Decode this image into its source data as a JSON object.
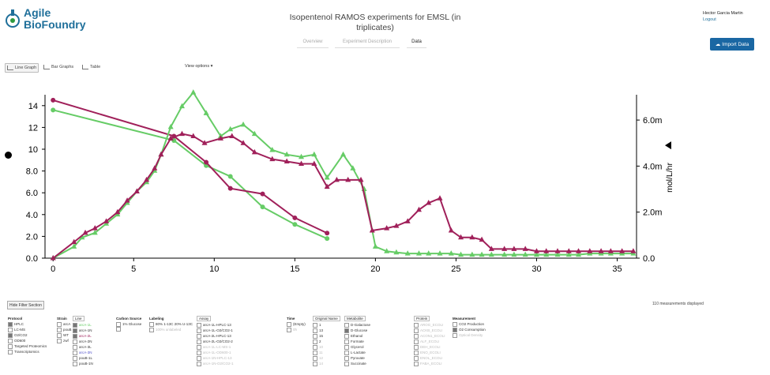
{
  "app": {
    "brand_line1": "Agile",
    "brand_line2": "BioFoundry"
  },
  "header": {
    "title": "Isopentenol RAMOS experiments for EMSL (in triplicates)"
  },
  "user": {
    "name": "Hector Garcia Martin",
    "logout": "Logout"
  },
  "tabs": [
    {
      "label": "Overview",
      "active": false
    },
    {
      "label": "Experiment Description",
      "active": false
    },
    {
      "label": "Data",
      "active": true
    }
  ],
  "import_button": {
    "label": "Import Data"
  },
  "view": {
    "line_graph": "Line Graph",
    "bar_graphs": "Bar Graphs",
    "table": "Table",
    "options": "View options ▾"
  },
  "chart_data": {
    "type": "line",
    "x_ticks": [
      "0",
      "5",
      "10",
      "15",
      "20",
      "25",
      "30",
      "35"
    ],
    "y_left_ticks": [
      "0.0",
      "2.0",
      "4.0",
      "6.0",
      "8.0",
      "10",
      "12",
      "14"
    ],
    "y_right_ticks": [
      "0.0",
      "2.0m",
      "4.0m",
      "6.0m"
    ],
    "y_right_label": "mol/L/hr",
    "xlim": [
      -0.5,
      36.2
    ],
    "ylim_left": [
      0,
      15
    ],
    "ylim_right": [
      0,
      0.0071
    ],
    "series": [
      {
        "color": "#66cc66",
        "axis": "left",
        "marker": "circle",
        "x": [
          0,
          7.5,
          9.5,
          11,
          13,
          15,
          17
        ],
        "y": [
          13.6,
          10.8,
          8.5,
          7.5,
          4.7,
          3.1,
          1.8
        ]
      },
      {
        "color": "#a0205a",
        "axis": "left",
        "marker": "circle",
        "x": [
          0,
          7.5,
          9.5,
          11,
          13,
          15,
          17
        ],
        "y": [
          14.5,
          11.2,
          8.8,
          6.4,
          5.9,
          3.7,
          2.3
        ]
      },
      {
        "color": "#66cc66",
        "axis": "right",
        "marker": "triangle",
        "x": [
          0,
          1.3,
          1.8,
          2.6,
          3.3,
          4,
          4.6,
          5.2,
          5.8,
          6.3,
          6.7,
          7.3,
          8,
          8.7,
          9.5,
          10.4,
          11,
          11.8,
          12.5,
          13.6,
          14.5,
          15.4,
          16.2,
          17,
          18,
          18.6,
          19.3,
          20,
          20.7,
          21.3,
          22,
          22.7,
          23.3,
          24,
          24.7,
          25.3,
          26,
          26.6,
          27.2,
          28,
          28.6,
          29.3,
          30,
          30.6,
          31.3,
          32,
          32.6,
          33.3,
          34,
          34.6,
          35.3,
          36
        ],
        "y": [
          0,
          0.0005,
          0.0009,
          0.0011,
          0.0015,
          0.0019,
          0.0024,
          0.0029,
          0.0033,
          0.0038,
          0.0045,
          0.0057,
          0.0066,
          0.0072,
          0.0063,
          0.0053,
          0.0056,
          0.0058,
          0.0054,
          0.0047,
          0.0045,
          0.0044,
          0.0045,
          0.0035,
          0.0045,
          0.0039,
          0.003,
          0.0005,
          0.0003,
          0.00025,
          0.0002,
          0.0002,
          0.0002,
          0.0002,
          0.0002,
          0.00015,
          0.00015,
          0.00015,
          0.00015,
          0.00015,
          0.00015,
          0.00015,
          0.00015,
          0.00015,
          0.00015,
          0.00015,
          0.00015,
          0.0002,
          0.0002,
          0.0002,
          0.0002,
          0.0002
        ]
      },
      {
        "color": "#a0205a",
        "axis": "right",
        "marker": "triangle",
        "x": [
          0,
          1.3,
          2,
          2.6,
          3.3,
          4,
          4.6,
          5.2,
          5.8,
          6.3,
          6.7,
          7.3,
          8,
          8.7,
          9.4,
          10.4,
          11.1,
          11.8,
          12.5,
          13.6,
          14.5,
          15.4,
          16.2,
          17,
          17.6,
          18.3,
          19.1,
          19.8,
          20.7,
          21.3,
          22,
          22.7,
          23.3,
          24,
          24.7,
          25.3,
          26,
          26.6,
          27.2,
          28,
          28.6,
          29.3,
          30,
          30.6,
          31.3,
          32,
          32.6,
          33.3,
          34,
          34.6,
          35.3,
          36
        ],
        "y": [
          0,
          0.0007,
          0.0011,
          0.0013,
          0.0016,
          0.002,
          0.0025,
          0.0029,
          0.0034,
          0.0039,
          0.0045,
          0.0052,
          0.0054,
          0.0053,
          0.005,
          0.0052,
          0.0053,
          0.005,
          0.0046,
          0.0043,
          0.0042,
          0.0041,
          0.0041,
          0.0031,
          0.0034,
          0.0034,
          0.0034,
          0.0012,
          0.0013,
          0.0014,
          0.0016,
          0.0021,
          0.0024,
          0.0026,
          0.0012,
          0.0009,
          0.0009,
          0.0008,
          0.0004,
          0.0004,
          0.0004,
          0.0004,
          0.0003,
          0.0003,
          0.0003,
          0.0003,
          0.0003,
          0.0003,
          0.0003,
          0.0003,
          0.0003,
          0.0003
        ]
      }
    ]
  },
  "filters": {
    "hide_label": "Hide Filter Section",
    "count_label": "110 measurements displayed",
    "columns": [
      {
        "title": "Protocol",
        "boxed": false,
        "items": [
          {
            "label": "HPLC",
            "checked": true
          },
          {
            "label": "LC-MS",
            "checked": false
          },
          {
            "label": "O2/CO2",
            "checked": true
          },
          {
            "label": "OD600",
            "checked": false
          },
          {
            "label": "Targeted Proteomics",
            "checked": false
          },
          {
            "label": "Transcriptomics",
            "checked": false
          }
        ]
      },
      {
        "title": "Strain",
        "boxed": false,
        "items": [
          {
            "label": "arcA",
            "checked": false
          },
          {
            "label": "pouB",
            "checked": false
          },
          {
            "label": "WT",
            "checked": false
          },
          {
            "label": "zwf",
            "checked": false
          }
        ]
      },
      {
        "title": "Line",
        "boxed": true,
        "items": [
          {
            "label": "arcA-1L",
            "checked": true,
            "color": "#66cc66"
          },
          {
            "label": "arcA-1N",
            "checked": true
          },
          {
            "label": "arcA-2L",
            "checked": true,
            "color": "#a0205a"
          },
          {
            "label": "arcA-2N",
            "checked": false
          },
          {
            "label": "arcA-3L",
            "checked": false
          },
          {
            "label": "arcA-3N",
            "checked": false,
            "color": "#5555cc"
          },
          {
            "label": "pouB-1L",
            "checked": false
          },
          {
            "label": "pouB-1N",
            "checked": false
          }
        ]
      },
      {
        "title": "Carbon Source",
        "boxed": false,
        "items": [
          {
            "label": "1% Glucose",
            "checked": false
          },
          {
            "label": "",
            "checked": false,
            "disabled": true
          }
        ]
      },
      {
        "title": "Labeling",
        "boxed": false,
        "items": [
          {
            "label": "80% 1-13C 20% U-13C",
            "checked": false
          },
          {
            "label": "100% unlabeled",
            "checked": false,
            "disabled": true
          }
        ]
      },
      {
        "title": "Assay",
        "boxed": true,
        "items": [
          {
            "label": "arcA-1L-HPLC-13",
            "checked": false
          },
          {
            "label": "arcA-1L-O2/CO2-1",
            "checked": false
          },
          {
            "label": "arcA-2L-HPLC-13",
            "checked": false
          },
          {
            "label": "arcA-2L-O2/CO2-2",
            "checked": false
          },
          {
            "label": "arcA-1L-LC-MS-1",
            "checked": false,
            "disabled": true
          },
          {
            "label": "arcA-1L-OD600-1",
            "checked": false,
            "disabled": true
          },
          {
            "label": "arcA-1N-HPLC-13",
            "checked": false,
            "disabled": true
          },
          {
            "label": "arcA-1N-O2/CO2-1",
            "checked": false,
            "disabled": true
          }
        ]
      },
      {
        "title": "Time",
        "boxed": false,
        "items": [
          {
            "label": "(Empty)",
            "checked": false
          },
          {
            "label": "0h",
            "checked": false,
            "disabled": true
          }
        ]
      },
      {
        "title": "Original Name",
        "boxed": true,
        "items": [
          {
            "label": "1",
            "checked": false
          },
          {
            "label": "13",
            "checked": false
          },
          {
            "label": "15",
            "checked": false
          },
          {
            "label": "2",
            "checked": false
          },
          {
            "label": "10",
            "checked": false,
            "disabled": true
          },
          {
            "label": "11",
            "checked": false,
            "disabled": true
          },
          {
            "label": "12",
            "checked": false,
            "disabled": true
          },
          {
            "label": "14",
            "checked": false,
            "disabled": true
          }
        ]
      },
      {
        "title": "Metabolite",
        "boxed": true,
        "items": [
          {
            "label": "D-Galactose",
            "checked": false
          },
          {
            "label": "D-Glucose",
            "checked": true
          },
          {
            "label": "Ethanol",
            "checked": false
          },
          {
            "label": "Formate",
            "checked": false
          },
          {
            "label": "Glycerol",
            "checked": false
          },
          {
            "label": "L-Lactate",
            "checked": false
          },
          {
            "label": "Pyruvate",
            "checked": false
          },
          {
            "label": "Succinate",
            "checked": false
          }
        ]
      },
      {
        "title": "Protein",
        "boxed": true,
        "items": [
          {
            "label": "AROG_ECOLI",
            "checked": false,
            "disabled": true
          },
          {
            "label": "ACKB_ECOLI",
            "checked": false,
            "disabled": true
          },
          {
            "label": "ACON1_ECOLI",
            "checked": false,
            "disabled": true
          },
          {
            "label": "ALF_ECOLI",
            "checked": false,
            "disabled": true
          },
          {
            "label": "DEH_ECOLI",
            "checked": false,
            "disabled": true
          },
          {
            "label": "ENO_ECOLI",
            "checked": false,
            "disabled": true
          },
          {
            "label": "ENOL_ECOLI",
            "checked": false,
            "disabled": true
          },
          {
            "label": "FABA_ECOLI",
            "checked": false,
            "disabled": true
          }
        ]
      },
      {
        "title": "Measurement",
        "boxed": false,
        "items": [
          {
            "label": "CO2 Production",
            "checked": false
          },
          {
            "label": "O2 Consumption",
            "checked": true
          },
          {
            "label": "Optical Density",
            "checked": false,
            "disabled": true
          }
        ]
      }
    ]
  }
}
